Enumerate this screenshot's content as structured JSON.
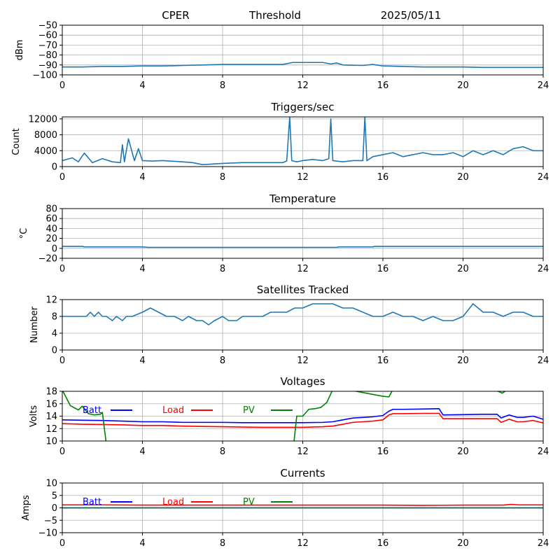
{
  "header": {
    "site": "CPER",
    "mode": "Threshold",
    "date": "2025/05/11"
  },
  "colors": {
    "series_default": "#1f77b4",
    "batt": "#0000ff",
    "load": "#ff0000",
    "pv": "#008000",
    "grid": "#b0b0b0"
  },
  "chart_data": [
    {
      "id": "threshold",
      "type": "line",
      "title": "",
      "xlabel": "",
      "ylabel": "dBm",
      "xlim": [
        0,
        24
      ],
      "ylim": [
        -100,
        -50
      ],
      "xticks": [
        0,
        4,
        8,
        12,
        16,
        20,
        24
      ],
      "yticks": [
        -100,
        -90,
        -80,
        -70,
        -60,
        -50
      ],
      "grid": true,
      "series": [
        {
          "color": "#1f77b4",
          "x": [
            0,
            1,
            2,
            3,
            4,
            5,
            6,
            7,
            8,
            9,
            10,
            11,
            11.5,
            12,
            13,
            13.4,
            13.7,
            14,
            15,
            15.5,
            16,
            17,
            18,
            19,
            20,
            21,
            22,
            23,
            24
          ],
          "y": [
            -92,
            -92,
            -91.5,
            -91.5,
            -91,
            -91,
            -90.5,
            -90,
            -89.5,
            -89.5,
            -89.5,
            -89.5,
            -87.5,
            -87.5,
            -87.5,
            -89,
            -88,
            -90,
            -90.5,
            -89.5,
            -91,
            -91.5,
            -92,
            -92,
            -92,
            -92.5,
            -92.5,
            -92.5,
            -92.5
          ]
        }
      ]
    },
    {
      "id": "triggers",
      "type": "line",
      "title": "Triggers/sec",
      "xlabel": "",
      "ylabel": "Count",
      "xlim": [
        0,
        24
      ],
      "ylim": [
        0,
        12500
      ],
      "xticks": [
        0,
        4,
        8,
        12,
        16,
        20,
        24
      ],
      "yticks": [
        0,
        4000,
        8000,
        12000
      ],
      "grid": true,
      "series": [
        {
          "color": "#1f77b4",
          "x": [
            0,
            0.5,
            0.8,
            1.1,
            1.5,
            2,
            2.5,
            2.9,
            3.0,
            3.1,
            3.3,
            3.6,
            3.8,
            4.0,
            4.5,
            5,
            6,
            6.5,
            7,
            8,
            9,
            10,
            11,
            11.2,
            11.35,
            11.45,
            11.7,
            12,
            12.5,
            13,
            13.3,
            13.4,
            13.5,
            14,
            14.5,
            15,
            15.1,
            15.2,
            15.5,
            16,
            16.5,
            17,
            17.5,
            18,
            18.5,
            19,
            19.5,
            20,
            20.5,
            21,
            21.5,
            22,
            22.5,
            23,
            23.5,
            24
          ],
          "y": [
            1500,
            2200,
            1200,
            3400,
            1000,
            2000,
            1200,
            1000,
            5500,
            1200,
            7000,
            1500,
            4500,
            1500,
            1400,
            1500,
            1200,
            1000,
            500,
            800,
            1000,
            1000,
            1000,
            1400,
            12500,
            1500,
            1200,
            1500,
            1800,
            1500,
            2000,
            12000,
            1500,
            1200,
            1500,
            1500,
            12500,
            1500,
            2500,
            3000,
            3500,
            2500,
            3000,
            3500,
            3000,
            3000,
            3500,
            2500,
            4000,
            3000,
            4000,
            3000,
            4500,
            5000,
            4000,
            4000
          ]
        }
      ]
    },
    {
      "id": "temperature",
      "type": "line",
      "title": "Temperature",
      "xlabel": "",
      "ylabel": "°C",
      "xlim": [
        0,
        24
      ],
      "ylim": [
        -20,
        80
      ],
      "xticks": [
        0,
        4,
        8,
        12,
        16,
        20,
        24
      ],
      "yticks": [
        -20,
        0,
        20,
        40,
        60,
        80
      ],
      "grid": true,
      "series": [
        {
          "color": "#1f77b4",
          "x": [
            0,
            1,
            1.1,
            4,
            4.3,
            13.7,
            13.8,
            15.5,
            15.6,
            24
          ],
          "y": [
            4,
            4,
            3,
            3,
            2,
            2,
            3,
            3,
            4,
            4
          ]
        }
      ]
    },
    {
      "id": "satellites",
      "type": "line",
      "title": "Satellites Tracked",
      "xlabel": "",
      "ylabel": "Number",
      "xlim": [
        0,
        24
      ],
      "ylim": [
        0,
        12
      ],
      "xticks": [
        0,
        4,
        8,
        12,
        16,
        20,
        24
      ],
      "yticks": [
        0,
        4,
        8,
        12
      ],
      "grid": true,
      "series": [
        {
          "color": "#1f77b4",
          "x": [
            0,
            1.2,
            1.4,
            1.6,
            1.8,
            2.0,
            2.2,
            2.5,
            2.7,
            3.0,
            3.2,
            3.5,
            4.0,
            4.4,
            4.8,
            5.2,
            5.6,
            6.0,
            6.3,
            6.7,
            7.0,
            7.3,
            7.6,
            8.0,
            8.3,
            8.7,
            9.0,
            9.5,
            10.0,
            10.4,
            10.8,
            11.2,
            11.6,
            12.0,
            12.5,
            13.0,
            13.5,
            14.0,
            14.5,
            15.0,
            15.5,
            16.0,
            16.5,
            17.0,
            17.5,
            18.0,
            18.5,
            19.0,
            19.5,
            20.0,
            20.5,
            21.0,
            21.5,
            22.0,
            22.5,
            23.0,
            23.5,
            24.0
          ],
          "y": [
            8,
            8,
            9,
            8,
            9,
            8,
            8,
            7,
            8,
            7,
            8,
            8,
            9,
            10,
            9,
            8,
            8,
            7,
            8,
            7,
            7,
            6,
            7,
            8,
            7,
            7,
            8,
            8,
            8,
            9,
            9,
            9,
            10,
            10,
            11,
            11,
            11,
            10,
            10,
            9,
            8,
            8,
            9,
            8,
            8,
            7,
            8,
            7,
            7,
            8,
            11,
            9,
            9,
            8,
            9,
            9,
            8,
            8
          ]
        }
      ]
    },
    {
      "id": "voltages",
      "type": "line",
      "title": "Voltages",
      "xlabel": "",
      "ylabel": "Volts",
      "xlim": [
        0,
        24
      ],
      "ylim": [
        10,
        18
      ],
      "xticks": [
        0,
        4,
        8,
        12,
        16,
        20,
        24
      ],
      "yticks": [
        10,
        12,
        14,
        16,
        18
      ],
      "grid": true,
      "legend": [
        "Batt",
        "Load",
        "PV"
      ],
      "series": [
        {
          "name": "Batt",
          "color": "#0000ff",
          "x": [
            0,
            1,
            2,
            3,
            4,
            5,
            6,
            7,
            8,
            9,
            10,
            11,
            12,
            13,
            13.5,
            14,
            14.5,
            15,
            15.5,
            16,
            16.3,
            16.5,
            17,
            18,
            18.8,
            19,
            20,
            21,
            21.7,
            21.9,
            22.3,
            22.7,
            23,
            23.5,
            24
          ],
          "y": [
            13.4,
            13.35,
            13.3,
            13.2,
            13.1,
            13.1,
            13.0,
            13.0,
            13.0,
            12.95,
            12.95,
            12.95,
            12.95,
            13.0,
            13.1,
            13.4,
            13.7,
            13.8,
            13.9,
            14.1,
            14.8,
            15.1,
            15.1,
            15.15,
            15.2,
            14.2,
            14.25,
            14.3,
            14.3,
            13.7,
            14.2,
            13.8,
            13.8,
            14.0,
            13.5
          ]
        },
        {
          "name": "Load",
          "color": "#ff0000",
          "x": [
            0,
            1,
            2,
            3,
            4,
            5,
            6,
            7,
            8,
            9,
            10,
            11,
            12,
            13,
            13.5,
            14,
            14.5,
            15,
            15.5,
            16,
            16.3,
            16.5,
            17,
            18,
            18.8,
            19,
            20,
            21,
            21.7,
            21.9,
            22.3,
            22.7,
            23,
            23.5,
            24
          ],
          "y": [
            12.8,
            12.7,
            12.65,
            12.6,
            12.5,
            12.5,
            12.4,
            12.35,
            12.3,
            12.25,
            12.2,
            12.2,
            12.2,
            12.3,
            12.4,
            12.7,
            13.0,
            13.1,
            13.2,
            13.4,
            14.2,
            14.4,
            14.4,
            14.45,
            14.45,
            13.6,
            13.6,
            13.6,
            13.6,
            13.0,
            13.5,
            13.1,
            13.1,
            13.3,
            12.9
          ]
        },
        {
          "name": "PV",
          "color": "#008000",
          "x": [
            0,
            0.4,
            0.8,
            1.0,
            1.3,
            1.6,
            1.9,
            2.0,
            2.1,
            2.2,
            11.55,
            11.7,
            12.0,
            12.3,
            12.6,
            12.9,
            13.2,
            13.5,
            14.5,
            15.5,
            16.0,
            16.3,
            16.5,
            21.5,
            21.9,
            21.95,
            22.2
          ],
          "y": [
            18.2,
            15.7,
            15.0,
            15.6,
            14.4,
            14.2,
            14.3,
            14.6,
            12.0,
            9.5,
            9.5,
            14.0,
            14.0,
            15.1,
            15.2,
            15.4,
            16.2,
            18.3,
            18.1,
            17.5,
            17.2,
            17.1,
            18.3,
            18.3,
            17.8,
            17.7,
            18.2
          ]
        }
      ]
    },
    {
      "id": "currents",
      "type": "line",
      "title": "Currents",
      "xlabel": "",
      "ylabel": "Amps",
      "xlim": [
        0,
        24
      ],
      "ylim": [
        -10,
        10
      ],
      "xticks": [
        0,
        4,
        8,
        12,
        16,
        20,
        24
      ],
      "yticks": [
        -10,
        -5,
        0,
        5,
        10
      ],
      "grid": true,
      "legend": [
        "Batt",
        "Load",
        "PV"
      ],
      "series": [
        {
          "name": "Batt",
          "color": "#0000ff",
          "x": [
            0,
            24
          ],
          "y": [
            0,
            0
          ]
        },
        {
          "name": "Load",
          "color": "#ff0000",
          "x": [
            0,
            2,
            4,
            8,
            12,
            16,
            18,
            20,
            22,
            22.4,
            22.8,
            24
          ],
          "y": [
            1.2,
            1.2,
            1.1,
            1.1,
            1.1,
            1.1,
            1.0,
            1.1,
            1.1,
            1.4,
            1.2,
            1.2
          ]
        },
        {
          "name": "PV",
          "color": "#008000",
          "x": [
            0,
            24
          ],
          "y": [
            0,
            0
          ]
        }
      ]
    }
  ]
}
